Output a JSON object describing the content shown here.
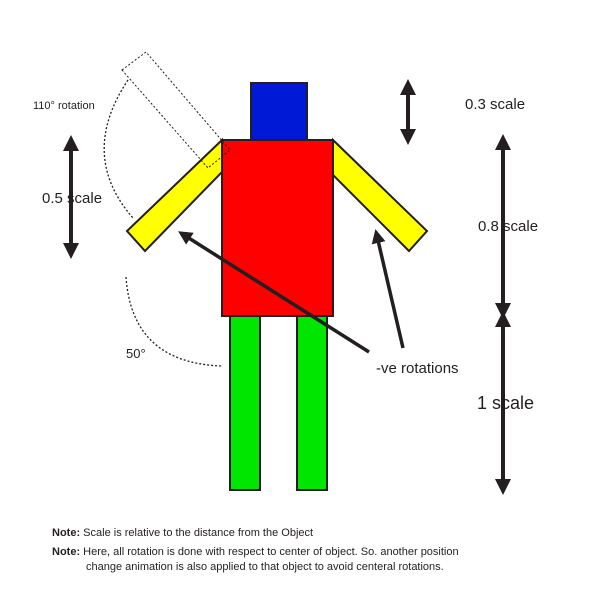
{
  "labels": {
    "head_scale": "0.3 scale",
    "arm_scale": "0.5 scale",
    "torso_scale": "0.8 scale",
    "leg_scale": "1 scale",
    "arm_rotation": "110° rotation",
    "leg_rotation": "50°",
    "neg_rotations": "-ve rotations"
  },
  "notes": [
    {
      "label": "Note:",
      "text": "Scale is relative to the distance from the Object"
    },
    {
      "label": "Note:",
      "text": "Here, all rotation is done with respect to center of object. So. another position",
      "continuation": "change animation is also applied to that object to avoid centeral rotations."
    }
  ],
  "colors": {
    "head": "#0019d6",
    "torso": "#ff0000",
    "arms": "#ffff00",
    "legs": "#00e600",
    "outline": "#231f20"
  }
}
